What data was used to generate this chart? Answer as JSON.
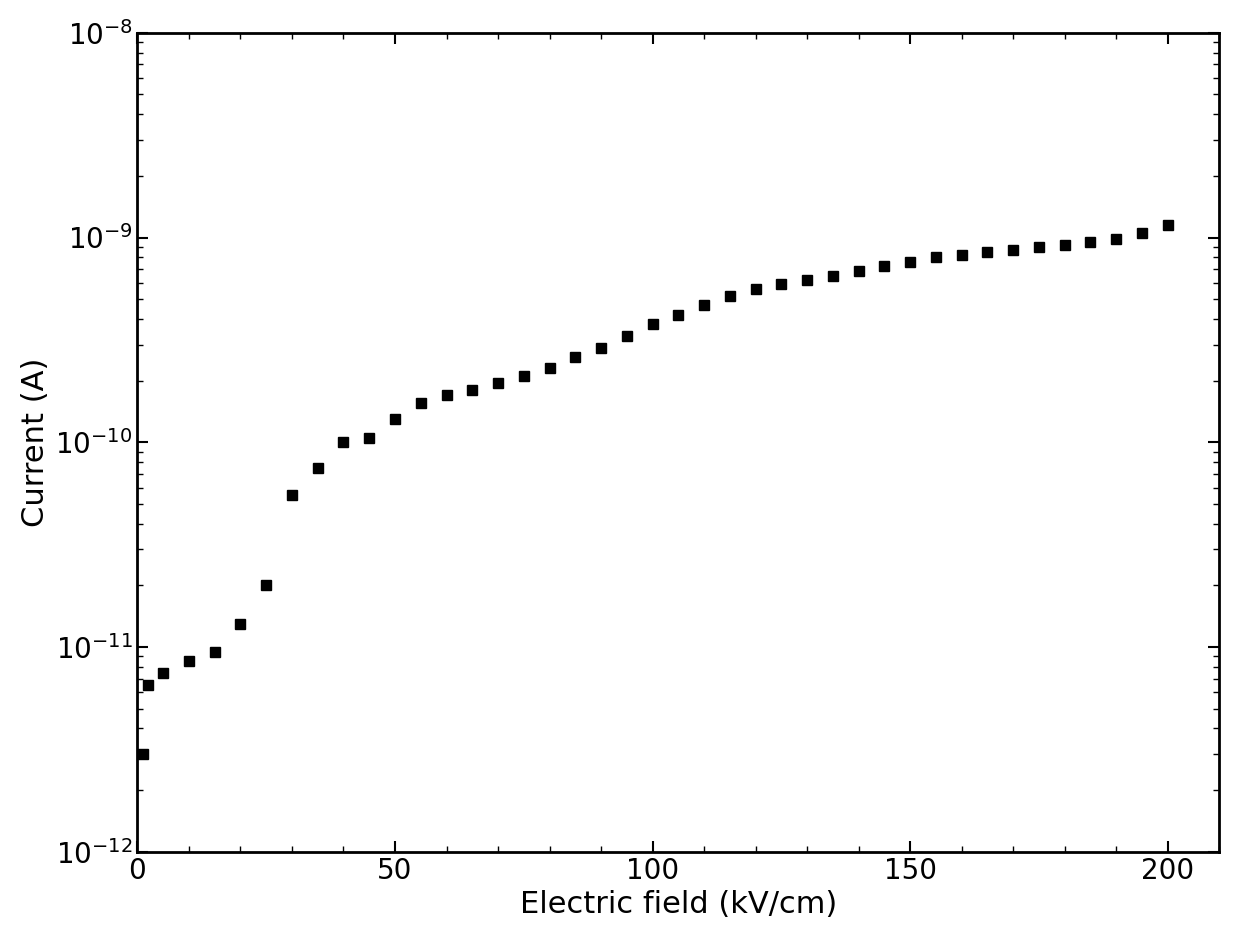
{
  "xlabel": "Electric field (kV/cm)",
  "ylabel": "Current (A)",
  "xlim": [
    0,
    210
  ],
  "ylim_log": [
    -12,
    -8
  ],
  "background_color": "#ffffff",
  "marker_color": "#000000",
  "marker_size": 7,
  "x": [
    1,
    2,
    5,
    10,
    15,
    20,
    25,
    30,
    35,
    40,
    45,
    50,
    55,
    60,
    65,
    70,
    75,
    80,
    85,
    90,
    95,
    100,
    105,
    110,
    115,
    120,
    125,
    130,
    135,
    140,
    145,
    150,
    155,
    160,
    165,
    170,
    175,
    180,
    185,
    190,
    195,
    200
  ],
  "y": [
    3e-12,
    6.5e-12,
    7.5e-12,
    8.5e-12,
    9.5e-12,
    1.3e-11,
    2e-11,
    5.5e-11,
    7.5e-11,
    1e-10,
    1.05e-10,
    1.3e-10,
    1.55e-10,
    1.7e-10,
    1.8e-10,
    1.95e-10,
    2.1e-10,
    2.3e-10,
    2.6e-10,
    2.9e-10,
    3.3e-10,
    3.8e-10,
    4.2e-10,
    4.7e-10,
    5.2e-10,
    5.6e-10,
    5.9e-10,
    6.2e-10,
    6.5e-10,
    6.9e-10,
    7.3e-10,
    7.6e-10,
    8e-10,
    8.2e-10,
    8.5e-10,
    8.7e-10,
    9e-10,
    9.2e-10,
    9.5e-10,
    9.8e-10,
    1.05e-09,
    1.15e-09
  ],
  "xticks": [
    0,
    50,
    100,
    150,
    200
  ],
  "xlabel_fontsize": 22,
  "ylabel_fontsize": 22,
  "tick_fontsize": 20,
  "spine_linewidth": 2.0
}
